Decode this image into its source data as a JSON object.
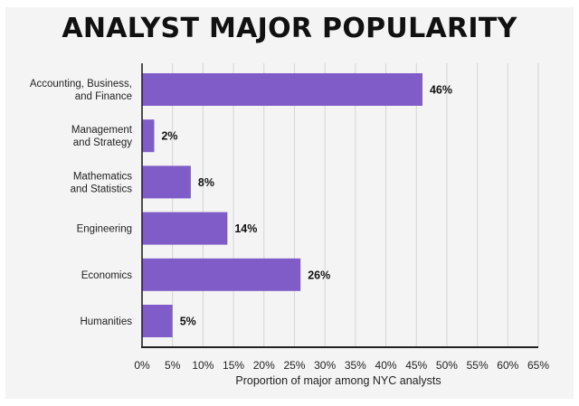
{
  "title": "ANALYST MAJOR POPULARITY",
  "chart_data": {
    "type": "bar",
    "orientation": "horizontal",
    "title": "ANALYST MAJOR POPULARITY",
    "xlabel": "Proportion of major among NYC analysts",
    "ylabel": "",
    "xlim": [
      0,
      65
    ],
    "x_ticks": [
      "0%",
      "5%",
      "10%",
      "15%",
      "20%",
      "25%",
      "30%",
      "35%",
      "40%",
      "45%",
      "50%",
      "55%",
      "60%",
      "65%"
    ],
    "categories": [
      [
        "Accounting, Business,",
        "and Finance"
      ],
      [
        "Management",
        "and Strategy"
      ],
      [
        "Mathematics",
        "and Statistics"
      ],
      [
        "Engineering"
      ],
      [
        "Economics"
      ],
      [
        "Humanities"
      ]
    ],
    "values": [
      46,
      2,
      8,
      14,
      26,
      5
    ],
    "value_labels": [
      "46%",
      "2%",
      "8%",
      "14%",
      "26%",
      "5%"
    ],
    "grid": "vertical",
    "bar_color": "#7f5cc7"
  }
}
